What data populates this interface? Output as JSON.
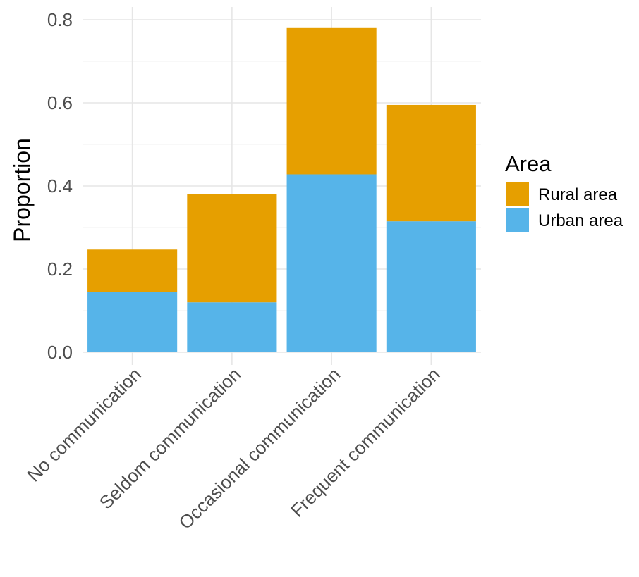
{
  "chart_data": {
    "type": "bar",
    "stacked": true,
    "categories": [
      "No communication",
      "Seldom communication",
      "Occasional communication",
      "Frequent communication"
    ],
    "series": [
      {
        "name": "Urban area",
        "values": [
          0.145,
          0.12,
          0.428,
          0.315
        ],
        "color": "#56B4E9"
      },
      {
        "name": "Rural area",
        "values": [
          0.102,
          0.26,
          0.352,
          0.28
        ],
        "color": "#E69F00"
      }
    ],
    "xlabel": "",
    "ylabel": "Proportion",
    "ylim": [
      0,
      0.8
    ],
    "yticks": [
      "0.0",
      "0.2",
      "0.4",
      "0.6",
      "0.8"
    ],
    "grid": true,
    "legend": {
      "title": "Area",
      "placement": "right",
      "entries": [
        {
          "label": "Rural area",
          "color": "#E69F00"
        },
        {
          "label": "Urban area",
          "color": "#56B4E9"
        }
      ]
    }
  }
}
